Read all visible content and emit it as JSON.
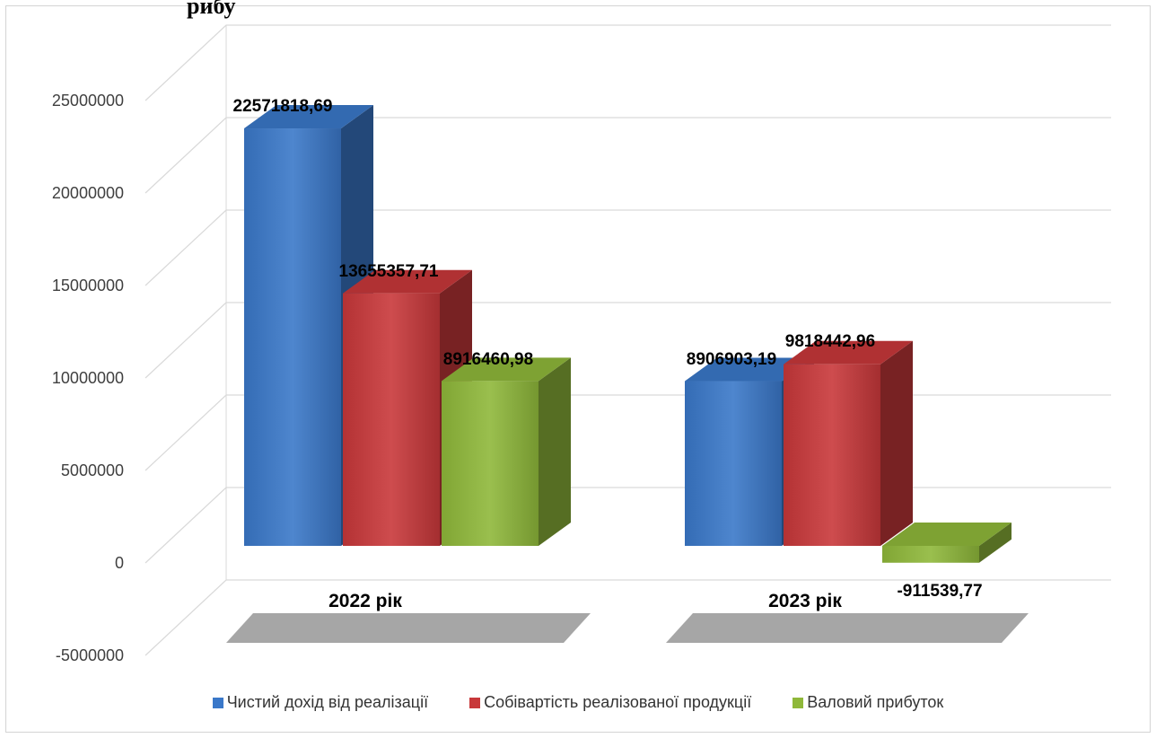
{
  "page": {
    "top_fragment": "рибу"
  },
  "chart_data": {
    "type": "bar",
    "title": "",
    "xlabel": "",
    "ylabel": "",
    "categories": [
      "2022 рік",
      "2023 рік"
    ],
    "ylim": [
      -5000000,
      25000000
    ],
    "yticks": [
      25000000,
      20000000,
      15000000,
      10000000,
      5000000,
      0,
      -5000000
    ],
    "ytick_labels": [
      "25000000",
      "20000000",
      "15000000",
      "10000000",
      "5000000",
      "0",
      "-5000000"
    ],
    "grid": true,
    "style": "3d-column",
    "legend_position": "bottom",
    "series": [
      {
        "name": "Чистий дохід від реалізації",
        "values": [
          22571818.69,
          8906903.19
        ],
        "labels": [
          "22571818,69",
          "8906903,19"
        ],
        "color": "#3a78c9"
      },
      {
        "name": "Собівартість реалізованої продукції",
        "values": [
          13655357.71,
          9818442.96
        ],
        "labels": [
          "13655357,71",
          "9818442,96"
        ],
        "color": "#c8383a"
      },
      {
        "name": "Валовий прибуток",
        "values": [
          8916460.98,
          -911539.77
        ],
        "labels": [
          "8916460,98",
          "-911539,77"
        ],
        "color": "#8fb83a"
      }
    ]
  }
}
